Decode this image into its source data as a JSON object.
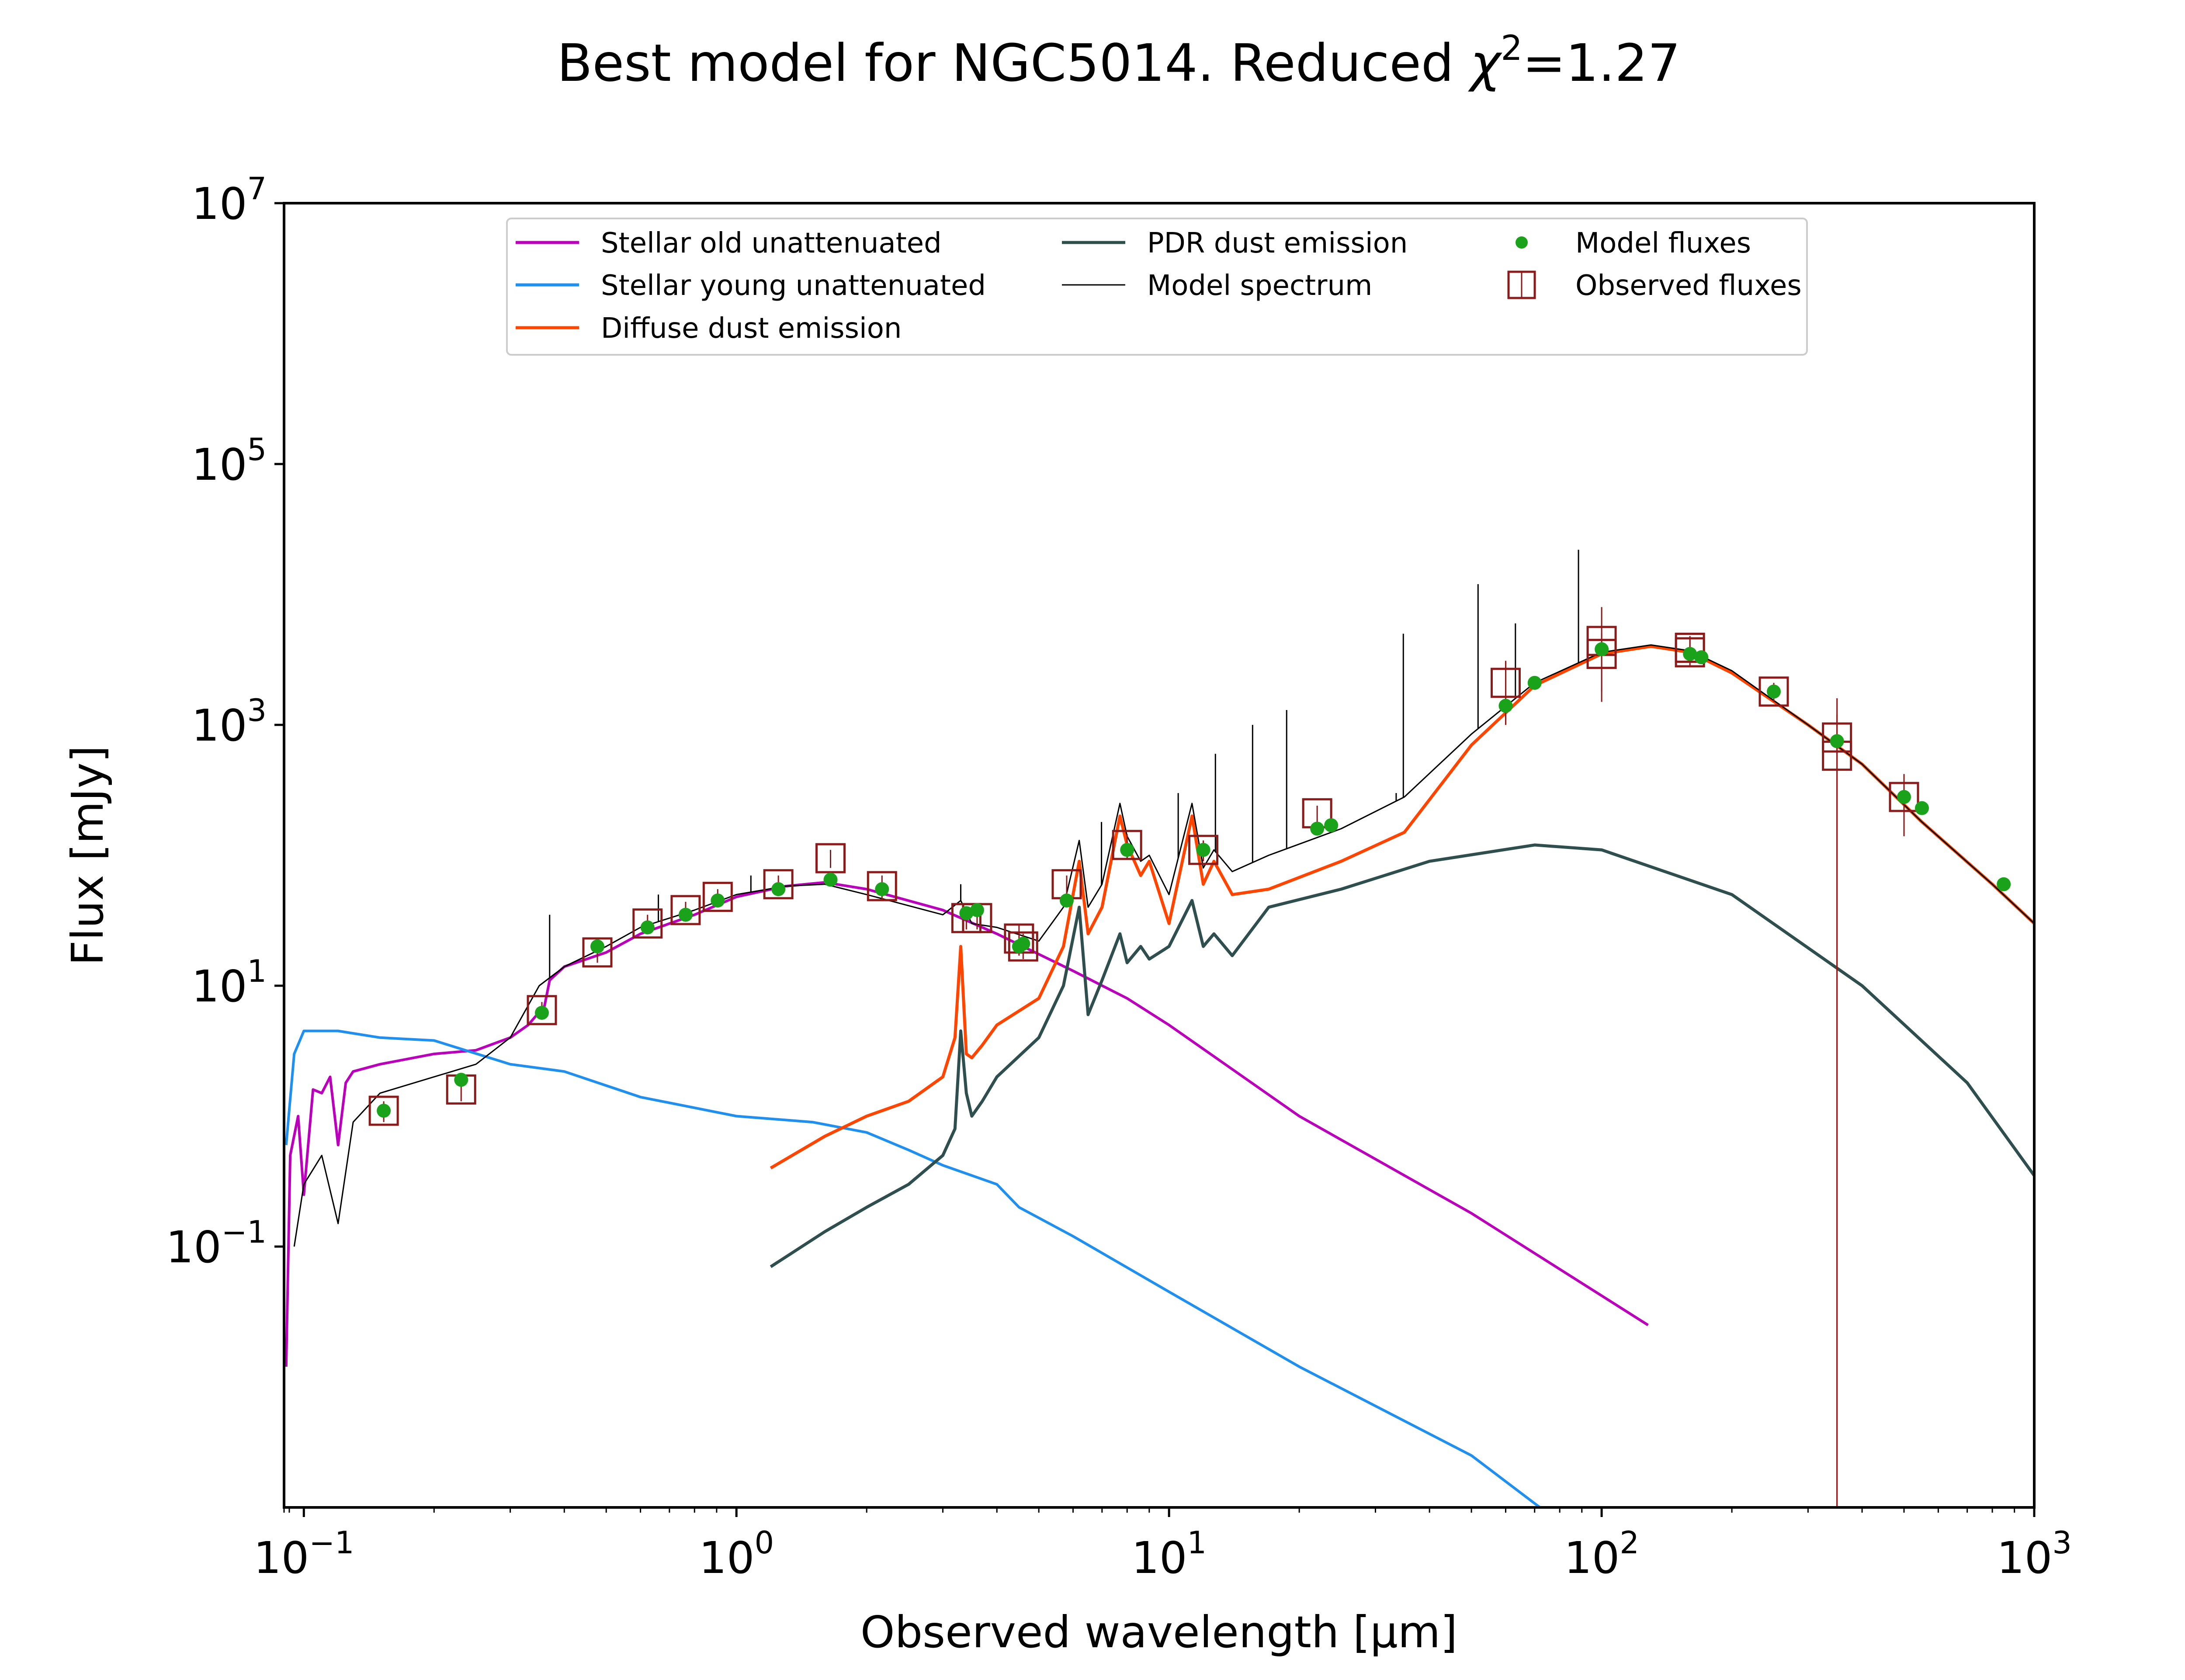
{
  "chart_data": {
    "type": "line",
    "title_main": "Best model for NGC5014. Reduced ",
    "title_chi": "χ",
    "title_chi_exp": "2",
    "title_value": "=1.27",
    "xlabel": "Observed wavelength [μm]",
    "ylabel": "Flux [mJy]",
    "xscale": "log",
    "yscale": "log",
    "xlim": [
      0.09,
      1000
    ],
    "ylim": [
      0.001,
      10000000
    ],
    "x_ticks": [
      {
        "value": 0.1,
        "base": "10",
        "exp": "−1"
      },
      {
        "value": 1,
        "base": "10",
        "exp": "0"
      },
      {
        "value": 10,
        "base": "10",
        "exp": "1"
      },
      {
        "value": 100,
        "base": "10",
        "exp": "2"
      },
      {
        "value": 1000,
        "base": "10",
        "exp": "3"
      }
    ],
    "y_ticks": [
      {
        "value": 0.1,
        "base": "10",
        "exp": "−1"
      },
      {
        "value": 10,
        "base": "10",
        "exp": "1"
      },
      {
        "value": 1000,
        "base": "10",
        "exp": "3"
      },
      {
        "value": 100000,
        "base": "10",
        "exp": "5"
      },
      {
        "value": 10000000,
        "base": "10",
        "exp": "7"
      }
    ],
    "grid": false,
    "legend_position": "top-center",
    "legend": [
      {
        "label": "Stellar old unattenuated",
        "color": "#bb00bb",
        "kind": "line"
      },
      {
        "label": "Stellar young unattenuated",
        "color": "#1f8ff0",
        "kind": "line"
      },
      {
        "label": "Diffuse dust emission",
        "color": "#ff4500",
        "kind": "line"
      },
      {
        "label": "PDR dust emission",
        "color": "#2f4f4f",
        "kind": "line"
      },
      {
        "label": "Model spectrum",
        "color": "#000000",
        "kind": "thin-line"
      },
      {
        "label": "Model fluxes",
        "color": "#1aa31a",
        "kind": "dot"
      },
      {
        "label": "Observed fluxes",
        "color": "#8b1a1a",
        "kind": "square"
      }
    ],
    "series": [
      {
        "name": "Stellar old unattenuated",
        "color": "#bb00bb",
        "x": [
          0.091,
          0.093,
          0.097,
          0.1,
          0.105,
          0.11,
          0.115,
          0.12,
          0.125,
          0.13,
          0.15,
          0.2,
          0.25,
          0.3,
          0.33,
          0.36,
          0.37,
          0.4,
          0.5,
          0.6,
          0.8,
          1.0,
          1.3,
          1.6,
          2.0,
          3.0,
          4.0,
          6.0,
          8.0,
          10.0,
          20.0,
          50.0,
          128.0
        ],
        "y": [
          0.012,
          0.5,
          1.0,
          0.25,
          1.6,
          1.5,
          2.0,
          0.6,
          1.8,
          2.2,
          2.5,
          3.0,
          3.2,
          4.0,
          5.0,
          7.0,
          11.0,
          14.0,
          18.0,
          25.0,
          35.0,
          48.0,
          58.0,
          62.0,
          55.0,
          38.0,
          25.0,
          13.0,
          8.0,
          5.0,
          1.0,
          0.18,
          0.025
        ]
      },
      {
        "name": "Stellar young unattenuated",
        "color": "#1f8ff0",
        "x": [
          0.091,
          0.095,
          0.1,
          0.12,
          0.15,
          0.2,
          0.3,
          0.4,
          0.6,
          1.0,
          1.5,
          2.0,
          2.5,
          3.0,
          4.0,
          4.5,
          6.0,
          10.0,
          20.0,
          50.0,
          72.0
        ],
        "y": [
          0.6,
          3.0,
          4.5,
          4.5,
          4.0,
          3.8,
          2.5,
          2.2,
          1.4,
          1.0,
          0.9,
          0.75,
          0.55,
          0.42,
          0.3,
          0.2,
          0.12,
          0.045,
          0.012,
          0.0025,
          0.001
        ]
      },
      {
        "name": "Diffuse dust emission",
        "color": "#ff4500",
        "x": [
          1.2,
          1.6,
          2.0,
          2.5,
          3.0,
          3.2,
          3.3,
          3.4,
          3.5,
          3.7,
          4.0,
          5.0,
          5.7,
          6.2,
          6.5,
          7.0,
          7.7,
          8.0,
          8.6,
          9.0,
          10.0,
          11.3,
          12.0,
          12.7,
          14.0,
          17.0,
          25.0,
          35.0,
          50.0,
          70.0,
          100.0,
          130.0,
          160.0,
          200.0,
          300.0,
          400.0,
          550.0,
          800.0,
          1000.0
        ],
        "y": [
          0.4,
          0.7,
          1.0,
          1.3,
          2.0,
          4.0,
          20.0,
          3.0,
          2.8,
          3.5,
          5.0,
          8.0,
          20.0,
          90.0,
          25.0,
          40.0,
          200.0,
          120.0,
          70.0,
          90.0,
          30.0,
          200.0,
          60.0,
          90.0,
          50.0,
          55.0,
          90.0,
          150.0,
          700.0,
          2000.0,
          3500.0,
          4000.0,
          3600.0,
          2500.0,
          1000.0,
          500.0,
          180.0,
          60.0,
          30.0
        ]
      },
      {
        "name": "PDR dust emission",
        "color": "#2f4f4f",
        "x": [
          1.2,
          1.6,
          2.0,
          2.5,
          3.0,
          3.2,
          3.3,
          3.4,
          3.5,
          3.7,
          4.0,
          5.0,
          5.7,
          6.2,
          6.5,
          7.0,
          7.7,
          8.0,
          8.6,
          9.0,
          10.0,
          11.3,
          12.0,
          12.7,
          14.0,
          17.0,
          25.0,
          40.0,
          70.0,
          100.0,
          200.0,
          400.0,
          700.0,
          1000.0
        ],
        "y": [
          0.07,
          0.13,
          0.2,
          0.3,
          0.5,
          0.8,
          4.5,
          1.5,
          1.0,
          1.3,
          2.0,
          4.0,
          10.0,
          40.0,
          6.0,
          11.0,
          25.0,
          15.0,
          20.0,
          16.0,
          20.0,
          45.0,
          20.0,
          25.0,
          17.0,
          40.0,
          55.0,
          90.0,
          120.0,
          110.0,
          50.0,
          10.0,
          1.8,
          0.35
        ]
      },
      {
        "name": "Model spectrum",
        "color": "#000000",
        "x": [
          0.095,
          0.1,
          0.11,
          0.12,
          0.13,
          0.15,
          0.2,
          0.25,
          0.3,
          0.35,
          0.4,
          0.5,
          0.6,
          0.8,
          1.0,
          1.3,
          1.6,
          2.0,
          3.0,
          3.3,
          3.5,
          4.0,
          5.0,
          5.7,
          6.2,
          6.5,
          7.0,
          7.7,
          8.0,
          8.6,
          9.0,
          10.0,
          11.3,
          12.0,
          12.7,
          14.0,
          17.0,
          25.0,
          35.0,
          50.0,
          70.0,
          100.0,
          130.0,
          160.0,
          200.0,
          300.0,
          400.0,
          550.0,
          800.0,
          1000.0
        ],
        "y": [
          0.1,
          0.3,
          0.5,
          0.15,
          0.9,
          1.5,
          2.0,
          2.5,
          4.0,
          10.0,
          14.0,
          20.0,
          28.0,
          38.0,
          50.0,
          58.0,
          60.0,
          50.0,
          35.0,
          45.0,
          30.0,
          28.0,
          22.0,
          40.0,
          130.0,
          40.0,
          60.0,
          250.0,
          140.0,
          90.0,
          100.0,
          50.0,
          250.0,
          80.0,
          110.0,
          75.0,
          100.0,
          160.0,
          280.0,
          850.0,
          2100.0,
          3600.0,
          4100.0,
          3700.0,
          2600.0,
          1000.0,
          500.0,
          180.0,
          60.0,
          30.0
        ]
      }
    ],
    "emission_lines": [
      {
        "x": 0.37,
        "top": 35.0
      },
      {
        "x": 0.5,
        "top": 20.0
      },
      {
        "x": 0.66,
        "top": 50.0
      },
      {
        "x": 1.08,
        "top": 70.0
      },
      {
        "x": 3.3,
        "top": 60.0
      },
      {
        "x": 6.98,
        "top": 180.0
      },
      {
        "x": 10.5,
        "top": 300.0
      },
      {
        "x": 12.8,
        "top": 600.0
      },
      {
        "x": 15.6,
        "top": 1000.0
      },
      {
        "x": 18.7,
        "top": 1300.0
      },
      {
        "x": 33.5,
        "top": 300.0
      },
      {
        "x": 34.8,
        "top": 5000.0
      },
      {
        "x": 51.8,
        "top": 12000.0
      },
      {
        "x": 63.2,
        "top": 6000.0
      },
      {
        "x": 88.4,
        "top": 22000.0
      }
    ],
    "model_fluxes": {
      "x": [
        0.153,
        0.231,
        0.355,
        0.477,
        0.623,
        0.763,
        0.905,
        1.25,
        1.65,
        2.17,
        3.4,
        3.6,
        4.5,
        4.6,
        5.8,
        8.0,
        12.0,
        22.0,
        23.7,
        60.0,
        70.0,
        100.0,
        160.0,
        170.0,
        250.0,
        350.0,
        500.0,
        550.0,
        850.0
      ],
      "y": [
        1.1,
        1.9,
        6.2,
        20.0,
        28.0,
        35.0,
        45.0,
        55.0,
        65.0,
        55.0,
        36.0,
        38.0,
        20.0,
        21.0,
        45.0,
        110.0,
        110.0,
        160.0,
        170.0,
        1400.0,
        2100.0,
        3800.0,
        3500.0,
        3300.0,
        1800.0,
        750.0,
        280.0,
        230.0,
        60.0
      ]
    },
    "observed_fluxes": {
      "x": [
        0.153,
        0.231,
        0.355,
        0.477,
        0.623,
        0.763,
        0.905,
        1.25,
        1.65,
        2.17,
        3.4,
        3.6,
        4.5,
        4.6,
        5.8,
        8.0,
        12.0,
        22.0,
        60.0,
        100.0,
        100.0,
        160.0,
        160.0,
        250.0,
        350.0,
        350.0,
        500.0
      ],
      "y": [
        1.1,
        1.6,
        6.5,
        18.0,
        30.0,
        38.0,
        48.0,
        60.0,
        95.0,
        58.0,
        33.0,
        33.0,
        23.0,
        20.0,
        60.0,
        120.0,
        110.0,
        210.0,
        2100.0,
        3500.0,
        4400.0,
        3600.0,
        3900.0,
        1800.0,
        800.0,
        580.0,
        280.0
      ],
      "err_lo": [
        0.9,
        1.3,
        5.5,
        15.0,
        26.0,
        33.0,
        42.0,
        50.0,
        80.0,
        46.0,
        27.0,
        27.0,
        17.0,
        16.0,
        50.0,
        95.0,
        90.0,
        180.0,
        1000.0,
        1800.0,
        1500.0,
        2800.0,
        3000.0,
        1500.0,
        0.001,
        0.001,
        140.0
      ],
      "err_hi": [
        1.3,
        1.9,
        7.5,
        21.0,
        35.0,
        44.0,
        55.0,
        70.0,
        110.0,
        70.0,
        40.0,
        40.0,
        29.0,
        25.0,
        70.0,
        145.0,
        130.0,
        240.0,
        3100.0,
        5000.0,
        8000.0,
        4500.0,
        4800.0,
        2100.0,
        1600.0,
        1200.0,
        420.0
      ]
    },
    "colors": {
      "model_fluxes": "#1aa31a",
      "observed_fluxes": "#8b1a1a",
      "axes": "#000000",
      "background": "#ffffff"
    }
  }
}
